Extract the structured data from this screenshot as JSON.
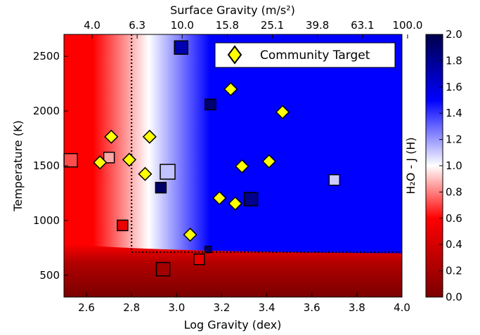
{
  "chart_data": {
    "type": "scatter",
    "title": "",
    "xlabel": "Log Gravity (dex)",
    "ylabel": "Temperature (K)",
    "top_xlabel": "Surface Gravity (m/s²)",
    "colorbar_label": "H₂O - J (H)",
    "xlim": [
      2.5,
      4.0
    ],
    "ylim": [
      300,
      2700
    ],
    "xticks": [
      2.6,
      2.8,
      3.0,
      3.2,
      3.4,
      3.6,
      3.8,
      4.0
    ],
    "xtick_labels": [
      "2.6",
      "2.8",
      "3.0",
      "3.2",
      "3.4",
      "3.6",
      "3.8",
      "4.0"
    ],
    "yticks": [
      500,
      1000,
      1500,
      2000,
      2500
    ],
    "ytick_labels": [
      "500",
      "1000",
      "1500",
      "2000",
      "2500"
    ],
    "top_ticks": [
      2.5,
      2.7,
      2.9,
      3.1,
      3.3,
      3.5,
      3.7,
      3.9
    ],
    "top_tick_labels": [
      "4.0",
      "6.3",
      "10.0",
      "15.8",
      "25.1",
      "39.8",
      "63.1",
      "100.0"
    ],
    "colorbar_range": [
      0.0,
      2.0
    ],
    "colorbar_ticks": [
      0.0,
      0.2,
      0.4,
      0.6,
      0.8,
      1.0,
      1.2,
      1.4,
      1.6,
      1.8,
      2.0
    ],
    "colorbar_tick_labels": [
      "0.0",
      "0.2",
      "0.4",
      "0.6",
      "0.8",
      "1.0",
      "1.2",
      "1.4",
      "1.6",
      "1.8",
      "2.0"
    ],
    "colormap": [
      "#7b0000",
      "#ff0000",
      "#ffffff",
      "#0000ff",
      "#00004a"
    ],
    "boundary_x": 2.8,
    "boundary_y": 710,
    "background_model": {
      "low_temp_value": 0.1,
      "cold_transition_temp": 720,
      "gravity_transition": [
        2.65,
        3.15
      ]
    },
    "legend": {
      "label": "Community Target",
      "placement": "top-right",
      "color": "#ffff00"
    },
    "community_targets": [
      {
        "x": 2.66,
        "y": 1530
      },
      {
        "x": 2.71,
        "y": 1765
      },
      {
        "x": 2.79,
        "y": 1555
      },
      {
        "x": 2.86,
        "y": 1425
      },
      {
        "x": 2.88,
        "y": 1765
      },
      {
        "x": 3.06,
        "y": 870
      },
      {
        "x": 3.19,
        "y": 1205
      },
      {
        "x": 3.24,
        "y": 2200
      },
      {
        "x": 3.26,
        "y": 1155
      },
      {
        "x": 3.29,
        "y": 1495
      },
      {
        "x": 3.41,
        "y": 1540
      },
      {
        "x": 3.47,
        "y": 1990
      }
    ],
    "series": [
      {
        "x": 3.02,
        "y": 2580,
        "value": 1.72,
        "size": "medium"
      },
      {
        "x": 3.15,
        "y": 2060,
        "value": 1.9,
        "size": "small"
      },
      {
        "x": 2.53,
        "y": 1550,
        "value": 0.72,
        "size": "medium"
      },
      {
        "x": 2.7,
        "y": 1575,
        "value": 0.86,
        "size": "small"
      },
      {
        "x": 2.96,
        "y": 1445,
        "value": 1.12,
        "size": "large"
      },
      {
        "x": 2.93,
        "y": 1300,
        "value": 1.92,
        "size": "small"
      },
      {
        "x": 3.33,
        "y": 1195,
        "value": 1.82,
        "size": "medium"
      },
      {
        "x": 3.7,
        "y": 1370,
        "value": 1.1,
        "size": "small"
      },
      {
        "x": 2.76,
        "y": 955,
        "value": 0.5,
        "size": "small"
      },
      {
        "x": 3.14,
        "y": 735,
        "value": 1.9,
        "size": "xsmall"
      },
      {
        "x": 3.1,
        "y": 645,
        "value": 0.5,
        "size": "small"
      },
      {
        "x": 2.94,
        "y": 555,
        "value": 0.18,
        "size": "medium"
      }
    ]
  }
}
